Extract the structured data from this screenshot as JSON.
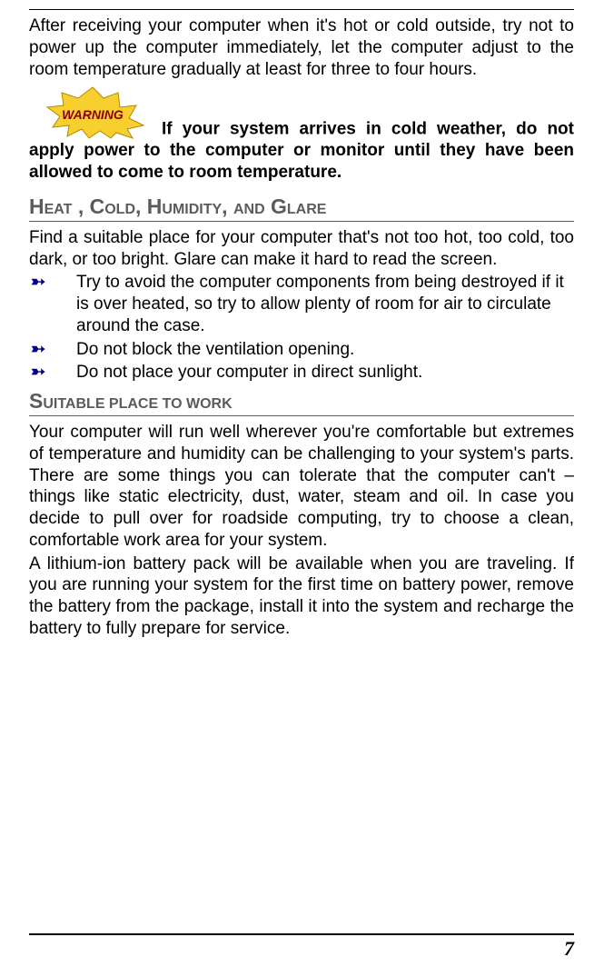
{
  "intro": "After receiving your computer when it's hot or cold outside, try not to power up the computer immediately, let the computer adjust to the room temperature gradually at least for three to four hours.",
  "warning_label": "WARNING",
  "warning_text": "If your system arrives in cold weather, do not apply power to the computer or monitor until they have been allowed to come to room temperature.",
  "section1": {
    "heading_parts": [
      "H",
      "EAT",
      ", C",
      "OLD",
      ", H",
      "UMIDITY",
      ", ",
      "AND",
      " G",
      "LARE"
    ],
    "para": "Find a suitable place for your computer that's not too hot, too cold, too dark, or too bright. Glare can make it hard to read the screen.",
    "bullets": [
      "Try to avoid the computer components from being destroyed if it is over heated, so try to allow plenty of room for air to circulate around the case.",
      "Do not block the ventilation opening.",
      "Do not place your computer in direct sunlight."
    ]
  },
  "section2": {
    "heading_parts": [
      "S",
      "UITABLE PLACE TO WORK"
    ],
    "para1": "Your computer will run well wherever you're comfortable but extremes of temperature and humidity can be challenging to your system's parts. There are some things you can tolerate that the computer can't – things like static electricity, dust, water, steam and oil. In case you decide to pull over for roadside computing, try to choose a clean, comfortable work area for your system.",
    "para2": "A lithium-ion battery pack will be available when you are traveling. If you are running your system for the first time on battery power, remove the battery from the package, install it into the system and recharge the battery to fully prepare for service."
  },
  "page_number": "7",
  "colors": {
    "heading_gray": "#5b5b5b",
    "bullet_blue": "#00008b",
    "warning_fill": "#f7cf2f",
    "warning_stroke": "#b08a00"
  }
}
